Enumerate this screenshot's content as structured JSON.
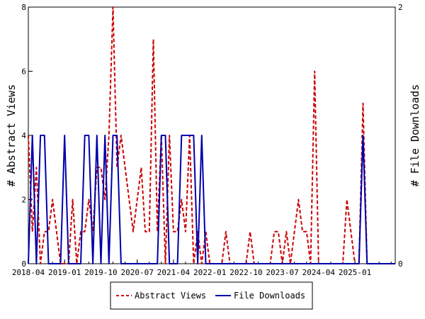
{
  "chart_data": {
    "type": "line",
    "ylabel_left": "# Abstract Views",
    "ylabel_right": "# File Downloads",
    "x_tick_labels": [
      "2018-04",
      "2019-01",
      "2019-10",
      "2020-07",
      "2021-04",
      "2022-01",
      "2022-10",
      "2023-07",
      "2024-04",
      "2025-01"
    ],
    "x_start": "2018-04",
    "x_end": "2025-11",
    "y_left_ticks": [
      "0",
      "2",
      "4",
      "6",
      "8"
    ],
    "y_right_ticks": [
      "0",
      "2"
    ],
    "ylim_left": [
      0,
      8
    ],
    "ylim_right": [
      0,
      2
    ],
    "grid": false,
    "legend_position": "bottom-center",
    "series": [
      {
        "name": "Abstract Views",
        "axis": "left",
        "color": "#cc0000",
        "style": "dashed",
        "x": [
          "2018-04",
          "2018-05",
          "2018-06",
          "2018-07",
          "2018-08",
          "2018-09",
          "2018-10",
          "2018-11",
          "2018-12",
          "2019-01",
          "2019-02",
          "2019-03",
          "2019-04",
          "2019-05",
          "2019-06",
          "2019-07",
          "2019-08",
          "2019-09",
          "2019-10",
          "2019-11",
          "2019-12",
          "2020-01",
          "2020-02",
          "2020-03",
          "2020-04",
          "2020-05",
          "2020-06",
          "2020-07",
          "2020-08",
          "2020-09",
          "2020-10",
          "2020-11",
          "2020-12",
          "2021-01",
          "2021-02",
          "2021-03",
          "2021-04",
          "2021-05",
          "2021-06",
          "2021-07",
          "2021-08",
          "2021-09",
          "2021-10",
          "2021-11",
          "2021-12",
          "2022-01",
          "2022-02",
          "2022-03",
          "2022-04",
          "2022-05",
          "2022-06",
          "2022-07",
          "2022-08",
          "2022-09",
          "2022-10",
          "2022-11",
          "2022-12",
          "2023-01",
          "2023-02",
          "2023-03",
          "2023-04",
          "2023-05",
          "2023-06",
          "2023-07",
          "2023-08",
          "2023-09",
          "2023-10",
          "2023-11",
          "2023-12",
          "2024-01",
          "2024-02",
          "2024-03",
          "2024-04",
          "2024-05",
          "2024-06",
          "2024-07",
          "2024-08",
          "2024-09",
          "2024-10",
          "2024-11",
          "2024-12",
          "2025-01",
          "2025-02",
          "2025-03",
          "2025-04",
          "2025-05",
          "2025-06",
          "2025-07",
          "2025-08",
          "2025-09",
          "2025-10",
          "2025-11"
        ],
        "y": [
          4,
          1,
          3,
          0,
          1,
          1,
          2,
          1,
          0,
          0,
          0,
          2,
          0,
          1,
          1,
          2,
          1,
          3,
          3,
          2,
          4,
          8,
          3,
          4,
          3,
          2,
          1,
          2,
          3,
          1,
          1,
          7,
          1,
          4,
          0,
          4,
          1,
          1,
          2,
          1,
          4,
          0,
          1,
          0,
          1,
          0,
          0,
          0,
          0,
          1,
          0,
          0,
          0,
          0,
          0,
          1,
          0,
          0,
          0,
          0,
          0,
          1,
          1,
          0,
          1,
          0,
          1,
          2,
          1,
          1,
          0,
          6,
          0,
          0,
          0,
          0,
          0,
          0,
          0,
          2,
          1,
          0,
          0,
          5,
          0,
          0,
          0,
          0,
          0,
          0,
          0,
          0
        ]
      },
      {
        "name": "File Downloads",
        "axis": "right",
        "color": "#0000aa",
        "style": "solid",
        "x": [
          "2018-04",
          "2018-05",
          "2018-06",
          "2018-07",
          "2018-08",
          "2018-09",
          "2018-10",
          "2018-11",
          "2018-12",
          "2019-01",
          "2019-02",
          "2019-03",
          "2019-04",
          "2019-05",
          "2019-06",
          "2019-07",
          "2019-08",
          "2019-09",
          "2019-10",
          "2019-11",
          "2019-12",
          "2020-01",
          "2020-02",
          "2020-03",
          "2020-04",
          "2020-05",
          "2020-06",
          "2020-07",
          "2020-08",
          "2020-09",
          "2020-10",
          "2020-11",
          "2020-12",
          "2021-01",
          "2021-02",
          "2021-03",
          "2021-04",
          "2021-05",
          "2021-06",
          "2021-07",
          "2021-08",
          "2021-09",
          "2021-10",
          "2021-11",
          "2021-12",
          "2022-01",
          "2022-02",
          "2022-03",
          "2022-04",
          "2022-05",
          "2022-06",
          "2022-07",
          "2022-08",
          "2022-09",
          "2022-10",
          "2022-11",
          "2022-12",
          "2023-01",
          "2023-02",
          "2023-03",
          "2023-04",
          "2023-05",
          "2023-06",
          "2023-07",
          "2023-08",
          "2023-09",
          "2023-10",
          "2023-11",
          "2023-12",
          "2024-01",
          "2024-02",
          "2024-03",
          "2024-04",
          "2024-05",
          "2024-06",
          "2024-07",
          "2024-08",
          "2024-09",
          "2024-10",
          "2024-11",
          "2024-12",
          "2025-01",
          "2025-02",
          "2025-03",
          "2025-04",
          "2025-05",
          "2025-06",
          "2025-07",
          "2025-08",
          "2025-09",
          "2025-10",
          "2025-11"
        ],
        "y": [
          0,
          1,
          0,
          1,
          1,
          0,
          0,
          0,
          0,
          1,
          0,
          0,
          0,
          0,
          1,
          1,
          0,
          1,
          0,
          1,
          0,
          1,
          1,
          0,
          0,
          0,
          0,
          0,
          0,
          0,
          0,
          0,
          0,
          1,
          1,
          0,
          0,
          0,
          1,
          1,
          1,
          1,
          0,
          1,
          0,
          0,
          0,
          0,
          0,
          0,
          0,
          0,
          0,
          0,
          0,
          0,
          0,
          0,
          0,
          0,
          0,
          0,
          0,
          0,
          0,
          0,
          0,
          0,
          0,
          0,
          0,
          0,
          0,
          0,
          0,
          0,
          0,
          0,
          0,
          0,
          0,
          0,
          0,
          1,
          0,
          0,
          0,
          0,
          0,
          0,
          0,
          0
        ]
      }
    ]
  }
}
